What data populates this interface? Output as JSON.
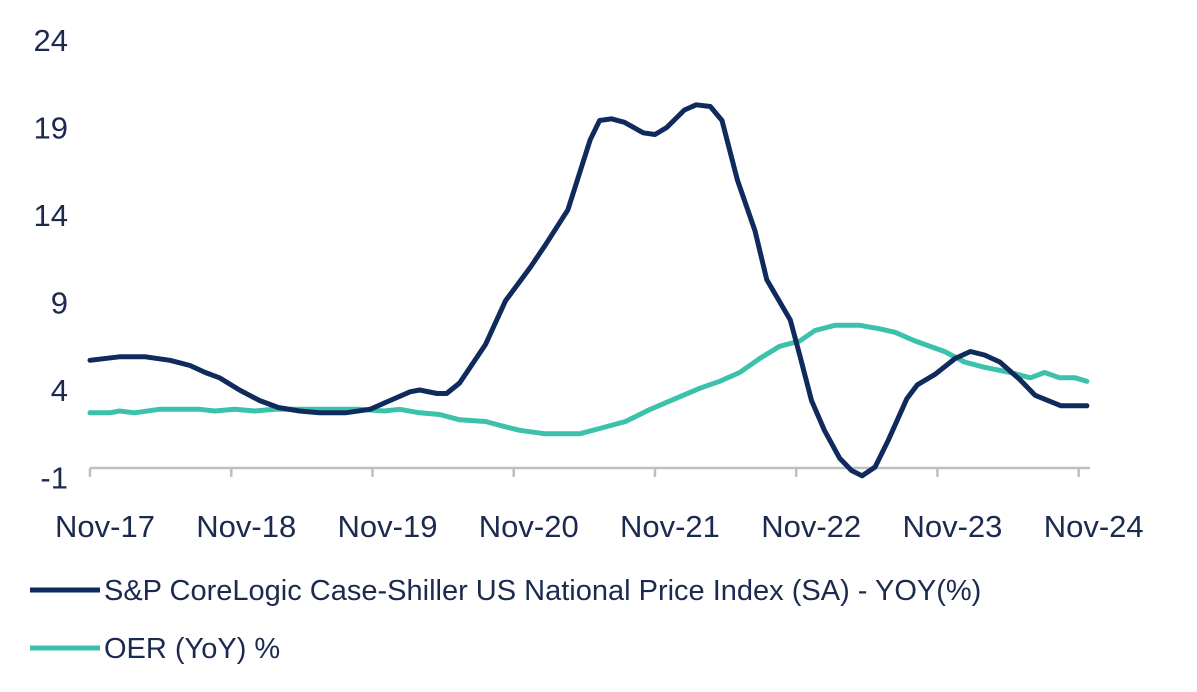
{
  "chart_data": {
    "type": "line",
    "title": "",
    "xlabel": "",
    "ylabel": "",
    "x_unit": "months since Nov-17",
    "ylim": [
      -1,
      24
    ],
    "yticks": [
      24,
      19,
      14,
      9,
      4,
      -1
    ],
    "xticks": [
      {
        "month": 0,
        "label": "Nov-17"
      },
      {
        "month": 12,
        "label": "Nov-18"
      },
      {
        "month": 24,
        "label": "Nov-19"
      },
      {
        "month": 36,
        "label": "Nov-20"
      },
      {
        "month": 48,
        "label": "Nov-21"
      },
      {
        "month": 60,
        "label": "Nov-22"
      },
      {
        "month": 72,
        "label": "Nov-23"
      },
      {
        "month": 84,
        "label": "Nov-24"
      }
    ],
    "grid": false,
    "legend_position": "bottom",
    "series": [
      {
        "name": "S&P CoreLogic Case-Shiller US National Price Index (SA) - YOY(%)",
        "color": "#0f2a5c",
        "x": [
          0,
          2.5,
          4.7,
          6.8,
          8.5,
          9.8,
          11,
          12.7,
          14.4,
          16,
          17.8,
          19.5,
          21.7,
          23.8,
          25.5,
          27.2,
          28,
          29.5,
          30.3,
          31.4,
          33.6,
          35.3,
          37.4,
          38.7,
          40.6,
          42.5,
          43.3,
          44.3,
          45.4,
          47,
          48,
          49,
          50.5,
          51.5,
          52.7,
          53.7,
          55,
          56.5,
          57.5,
          59.5,
          60.3,
          61.3,
          62.4,
          63.7,
          64.7,
          65.6,
          66.7,
          67.8,
          69.4,
          70.3,
          71.8,
          73.5,
          74.8,
          76,
          77.3,
          79,
          80.3,
          82.5,
          84.7
        ],
        "values": [
          5.7,
          5.9,
          5.9,
          5.7,
          5.4,
          5.0,
          4.7,
          4.0,
          3.4,
          3.0,
          2.8,
          2.7,
          2.7,
          2.9,
          3.4,
          3.9,
          4.0,
          3.8,
          3.8,
          4.4,
          6.6,
          9.1,
          11.0,
          12.3,
          14.3,
          18.3,
          19.4,
          19.5,
          19.3,
          18.7,
          18.6,
          19.0,
          20.0,
          20.3,
          20.2,
          19.4,
          16.0,
          13.1,
          10.3,
          8.0,
          6.0,
          3.4,
          1.7,
          0.1,
          -0.6,
          -0.9,
          -0.4,
          1.1,
          3.5,
          4.3,
          4.9,
          5.8,
          6.2,
          6.0,
          5.6,
          4.6,
          3.7,
          3.1,
          3.1
        ]
      },
      {
        "name": "OER (YoY) %",
        "color": "#3cc1aa",
        "x": [
          0,
          1.7,
          2.5,
          3.8,
          5.9,
          9.3,
          10.6,
          12.3,
          14,
          15.7,
          22.9,
          25,
          26.3,
          28,
          29.7,
          31.4,
          33.6,
          35.3,
          36.5,
          38.7,
          41.6,
          43.3,
          45.5,
          47.6,
          49.7,
          51.8,
          53.5,
          55.2,
          56.9,
          58.6,
          60.3,
          61.6,
          63.3,
          65.4,
          67.1,
          68.4,
          70.1,
          72.6,
          74.3,
          76,
          78.2,
          79.9,
          81.1,
          82.4,
          83.7,
          84.7
        ],
        "values": [
          2.7,
          2.7,
          2.8,
          2.7,
          2.9,
          2.9,
          2.8,
          2.9,
          2.8,
          2.9,
          2.9,
          2.8,
          2.9,
          2.7,
          2.6,
          2.3,
          2.2,
          1.9,
          1.7,
          1.5,
          1.5,
          1.8,
          2.2,
          2.9,
          3.5,
          4.1,
          4.5,
          5.0,
          5.8,
          6.5,
          6.8,
          7.4,
          7.7,
          7.7,
          7.5,
          7.3,
          6.8,
          6.2,
          5.6,
          5.3,
          5.0,
          4.7,
          5.0,
          4.7,
          4.7,
          4.5
        ]
      }
    ]
  }
}
